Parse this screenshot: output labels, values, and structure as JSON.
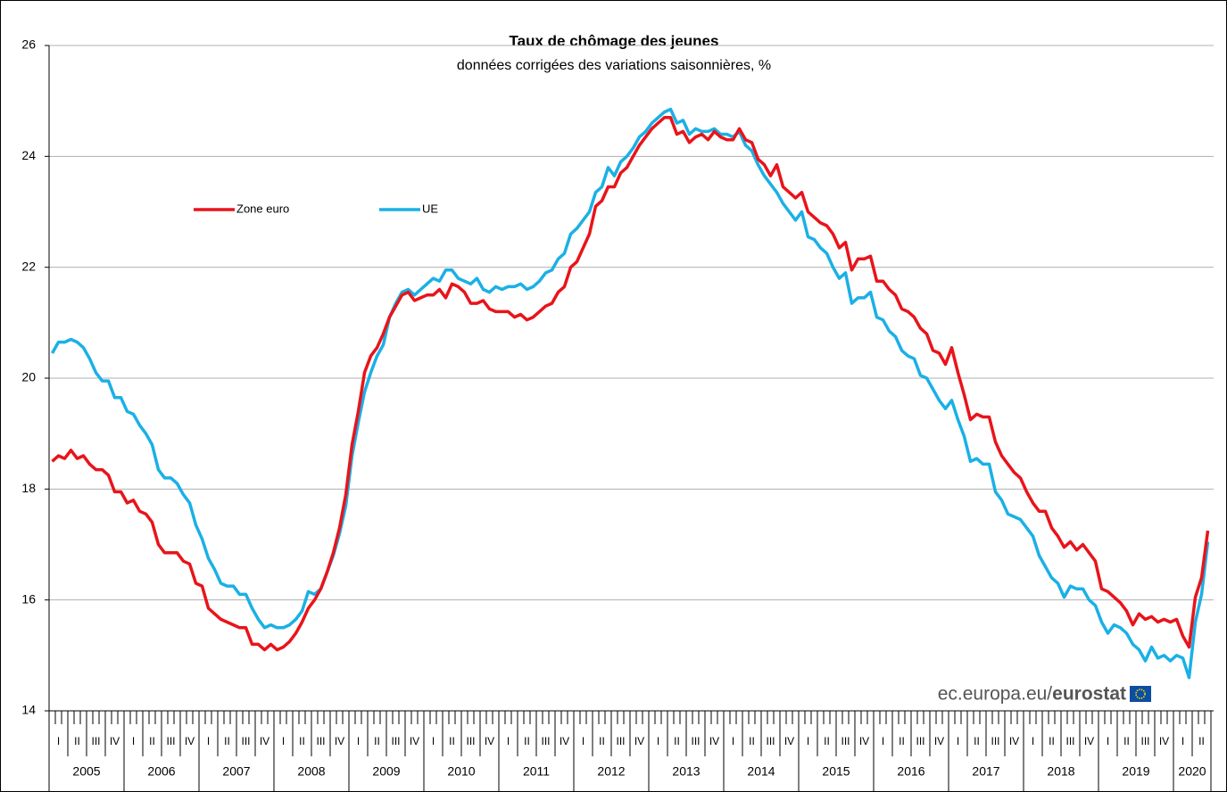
{
  "chart_data": {
    "type": "line",
    "title": "Taux de chômage des jeunes",
    "subtitle": "données corrigées des variations saisonnières, %",
    "years": [
      "2005",
      "2006",
      "2007",
      "2008",
      "2009",
      "2010",
      "2011",
      "2012",
      "2013",
      "2014",
      "2015",
      "2016",
      "2017",
      "2018",
      "2019",
      "2020"
    ],
    "quarters": [
      "I",
      "II",
      "III",
      "IV"
    ],
    "ylim": [
      14,
      26
    ],
    "yticks": [
      14,
      16,
      18,
      20,
      22,
      24,
      26
    ],
    "grid": true,
    "source": {
      "site": "ec.europa.eu/",
      "brand": "eurostat"
    },
    "series": [
      {
        "name": "Zone euro",
        "color": "#e8141a",
        "values": [
          18.5,
          18.6,
          18.55,
          18.7,
          18.55,
          18.6,
          18.45,
          18.35,
          18.35,
          18.25,
          17.95,
          17.95,
          17.75,
          17.8,
          17.6,
          17.55,
          17.4,
          17.0,
          16.85,
          16.85,
          16.85,
          16.7,
          16.65,
          16.3,
          16.25,
          15.85,
          15.75,
          15.65,
          15.6,
          15.55,
          15.5,
          15.5,
          15.2,
          15.2,
          15.1,
          15.2,
          15.1,
          15.15,
          15.25,
          15.4,
          15.6,
          15.85,
          16.0,
          16.2,
          16.5,
          16.85,
          17.3,
          17.9,
          18.8,
          19.4,
          20.1,
          20.4,
          20.55,
          20.8,
          21.1,
          21.3,
          21.5,
          21.55,
          21.4,
          21.45,
          21.5,
          21.5,
          21.6,
          21.45,
          21.7,
          21.65,
          21.55,
          21.35,
          21.35,
          21.4,
          21.25,
          21.2,
          21.2,
          21.2,
          21.1,
          21.15,
          21.05,
          21.1,
          21.2,
          21.3,
          21.35,
          21.55,
          21.65,
          22.0,
          22.1,
          22.35,
          22.6,
          23.1,
          23.2,
          23.45,
          23.45,
          23.7,
          23.8,
          24.0,
          24.2,
          24.35,
          24.5,
          24.6,
          24.7,
          24.7,
          24.4,
          24.45,
          24.25,
          24.35,
          24.4,
          24.3,
          24.45,
          24.35,
          24.3,
          24.3,
          24.5,
          24.3,
          24.25,
          23.95,
          23.85,
          23.65,
          23.85,
          23.45,
          23.35,
          23.25,
          23.35,
          23.0,
          22.9,
          22.8,
          22.75,
          22.6,
          22.35,
          22.45,
          21.95,
          22.15,
          22.15,
          22.2,
          21.75,
          21.75,
          21.6,
          21.5,
          21.25,
          21.2,
          21.1,
          20.9,
          20.8,
          20.5,
          20.45,
          20.25,
          20.55,
          20.1,
          19.7,
          19.25,
          19.35,
          19.3,
          19.3,
          18.85,
          18.6,
          18.45,
          18.3,
          18.2,
          17.95,
          17.75,
          17.6,
          17.6,
          17.3,
          17.15,
          16.95,
          17.05,
          16.9,
          17.0,
          16.85,
          16.7,
          16.2,
          16.15,
          16.05,
          15.95,
          15.8,
          15.55,
          15.75,
          15.65,
          15.7,
          15.6,
          15.65,
          15.6,
          15.65,
          15.35,
          15.15,
          16.05,
          16.4,
          17.25
        ]
      },
      {
        "name": "UE",
        "color": "#1ab0e6",
        "values": [
          20.45,
          20.65,
          20.65,
          20.7,
          20.65,
          20.55,
          20.35,
          20.1,
          19.95,
          19.95,
          19.65,
          19.65,
          19.4,
          19.35,
          19.15,
          19.0,
          18.8,
          18.35,
          18.2,
          18.2,
          18.1,
          17.9,
          17.75,
          17.35,
          17.1,
          16.75,
          16.55,
          16.3,
          16.25,
          16.25,
          16.1,
          16.1,
          15.85,
          15.65,
          15.5,
          15.55,
          15.5,
          15.5,
          15.55,
          15.65,
          15.8,
          16.15,
          16.1,
          16.2,
          16.5,
          16.8,
          17.2,
          17.7,
          18.6,
          19.2,
          19.75,
          20.1,
          20.4,
          20.6,
          21.1,
          21.35,
          21.55,
          21.6,
          21.5,
          21.6,
          21.7,
          21.8,
          21.75,
          21.95,
          21.95,
          21.8,
          21.75,
          21.7,
          21.8,
          21.6,
          21.55,
          21.65,
          21.6,
          21.65,
          21.65,
          21.7,
          21.6,
          21.65,
          21.75,
          21.9,
          21.95,
          22.15,
          22.25,
          22.6,
          22.7,
          22.85,
          23.0,
          23.35,
          23.45,
          23.8,
          23.65,
          23.9,
          24.0,
          24.15,
          24.35,
          24.45,
          24.6,
          24.7,
          24.8,
          24.85,
          24.6,
          24.65,
          24.4,
          24.5,
          24.45,
          24.45,
          24.5,
          24.4,
          24.4,
          24.35,
          24.45,
          24.2,
          24.1,
          23.85,
          23.65,
          23.5,
          23.35,
          23.15,
          23.0,
          22.85,
          23.0,
          22.55,
          22.5,
          22.35,
          22.25,
          22.0,
          21.8,
          21.9,
          21.35,
          21.45,
          21.45,
          21.55,
          21.1,
          21.05,
          20.85,
          20.75,
          20.5,
          20.4,
          20.35,
          20.05,
          20.0,
          19.8,
          19.6,
          19.45,
          19.6,
          19.25,
          18.95,
          18.5,
          18.55,
          18.45,
          18.45,
          17.95,
          17.8,
          17.55,
          17.5,
          17.45,
          17.3,
          17.15,
          16.8,
          16.6,
          16.4,
          16.3,
          16.05,
          16.25,
          16.2,
          16.2,
          16.0,
          15.9,
          15.6,
          15.4,
          15.55,
          15.5,
          15.4,
          15.2,
          15.1,
          14.9,
          15.15,
          14.95,
          15.0,
          14.9,
          15.0,
          14.95,
          14.6,
          15.6,
          16.1,
          17.05
        ]
      }
    ]
  }
}
